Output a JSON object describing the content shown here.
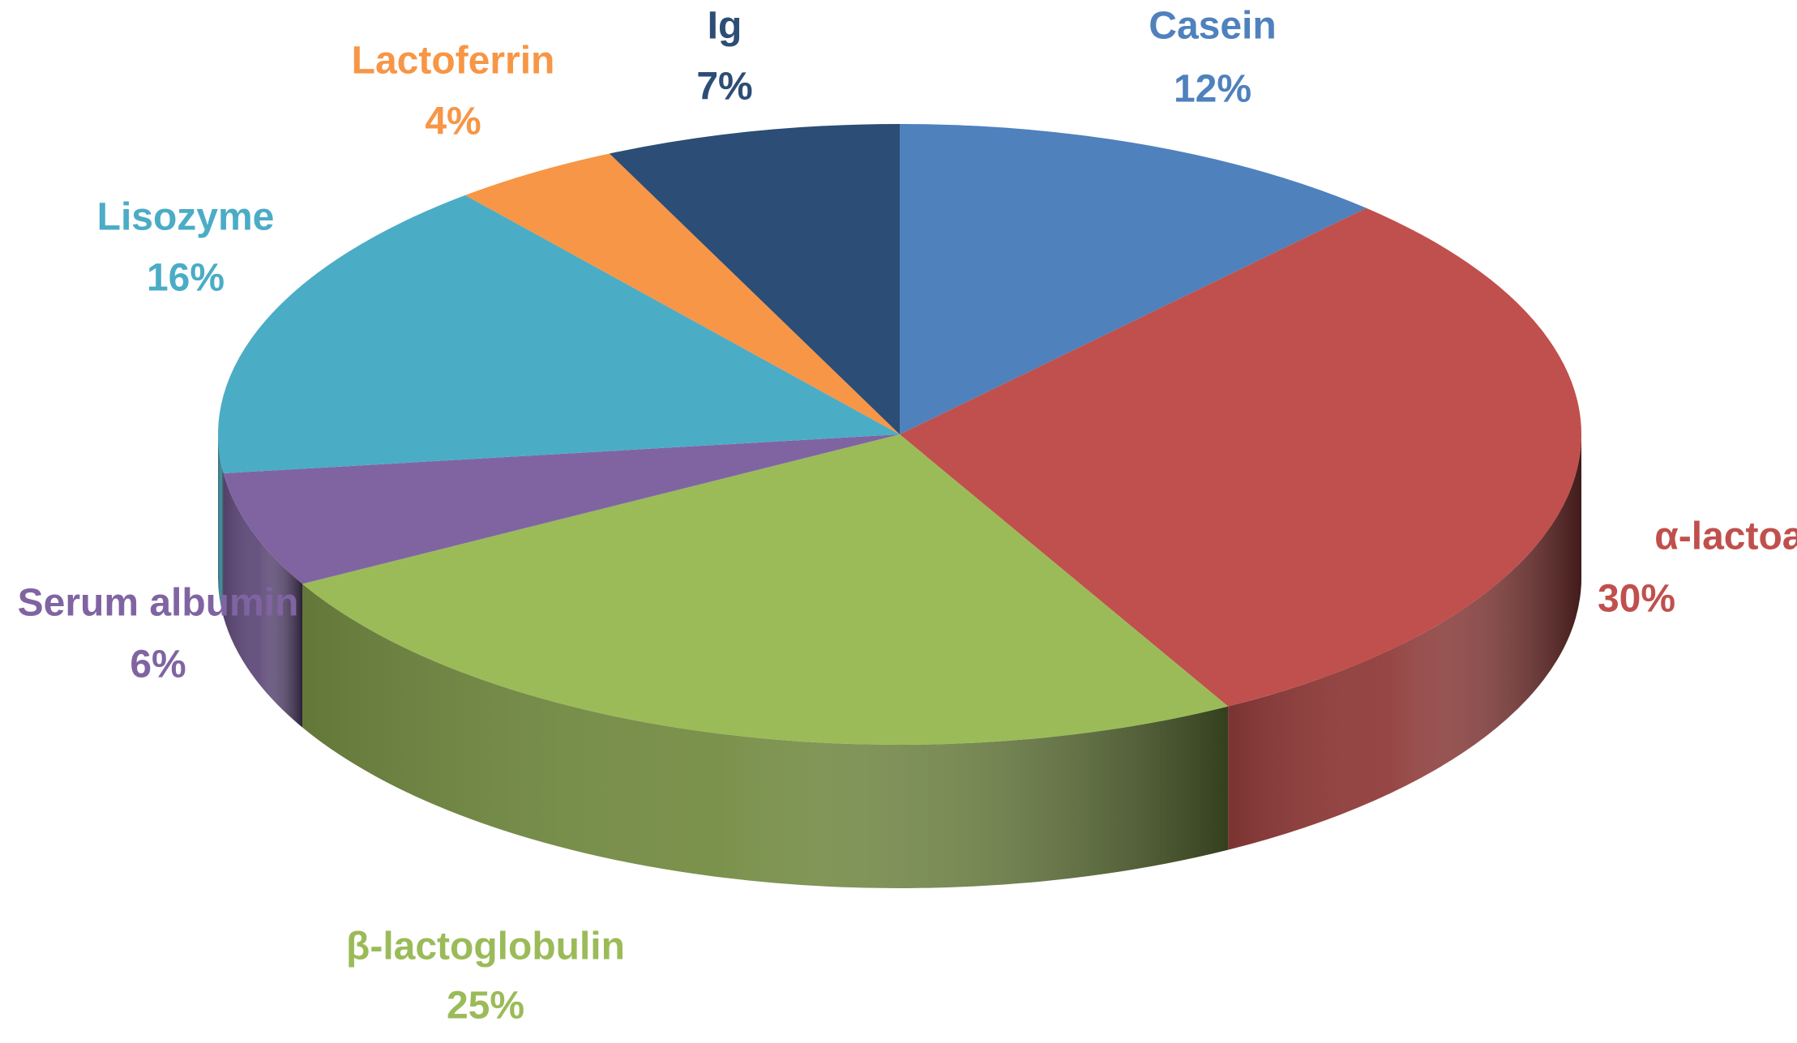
{
  "chart_data": {
    "type": "pie3d",
    "categories": [
      "Casein",
      "α-lactoalbumin",
      "β-lactoglobulin",
      "Serum albumin",
      "Lisozyme",
      "Lactoferrin",
      "Ig"
    ],
    "values": [
      12,
      30,
      25,
      6,
      16,
      4,
      7
    ],
    "value_labels": [
      "12%",
      "30%",
      "25%",
      "6%",
      "16%",
      "4%",
      "7%"
    ],
    "colors": [
      "#4f81bd",
      "#c0504d",
      "#9bbb59",
      "#8064a2",
      "#4bacc6",
      "#f79646",
      "#2c4d75"
    ]
  }
}
